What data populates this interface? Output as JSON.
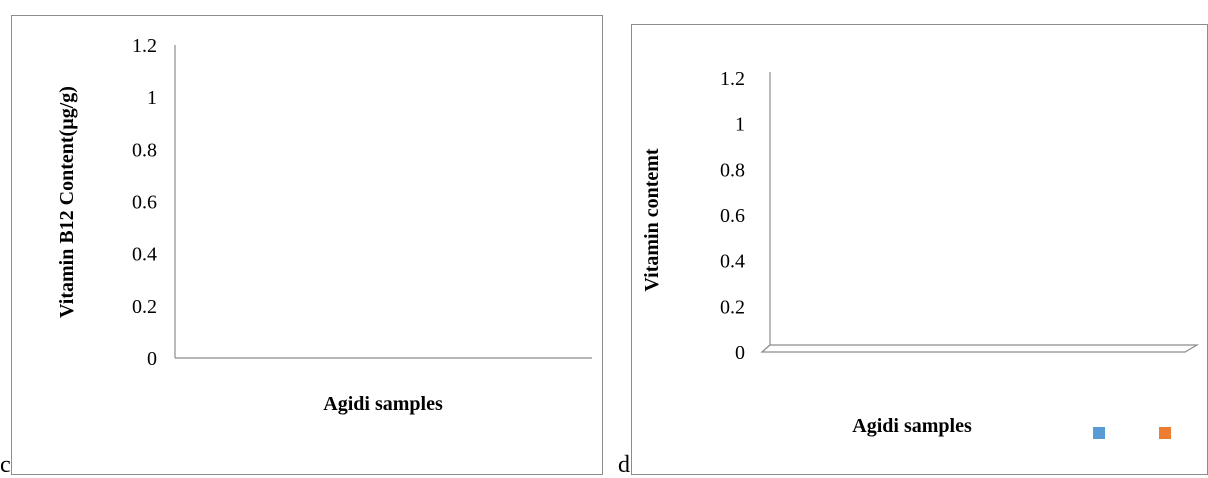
{
  "panels": {
    "c": {
      "letter": "c"
    },
    "d": {
      "letter": "d"
    }
  },
  "chart_data": [
    {
      "type": "bar",
      "categories": [],
      "series": [],
      "xlabel": "Agidi samples",
      "ylabel": "Vitamin B12 Content(µg/g)",
      "ylim": [
        0,
        1.2
      ],
      "yticks": [
        "0",
        "0.2",
        "0.4",
        "0.6",
        "0.8",
        "1",
        "1.2"
      ],
      "grid": false,
      "legend": "none"
    },
    {
      "type": "bar",
      "style": "3d",
      "categories": [],
      "series": [],
      "xlabel": "Agidi samples",
      "ylabel": "Vitamin contemt",
      "ylim": [
        0,
        1.2
      ],
      "yticks": [
        "0",
        "0.2",
        "0.4",
        "0.6",
        "0.8",
        "1",
        "1.2"
      ],
      "grid": false,
      "legend": "bottom-right",
      "legend_colors": [
        "#5b9bd5",
        "#ed7d31"
      ]
    }
  ]
}
